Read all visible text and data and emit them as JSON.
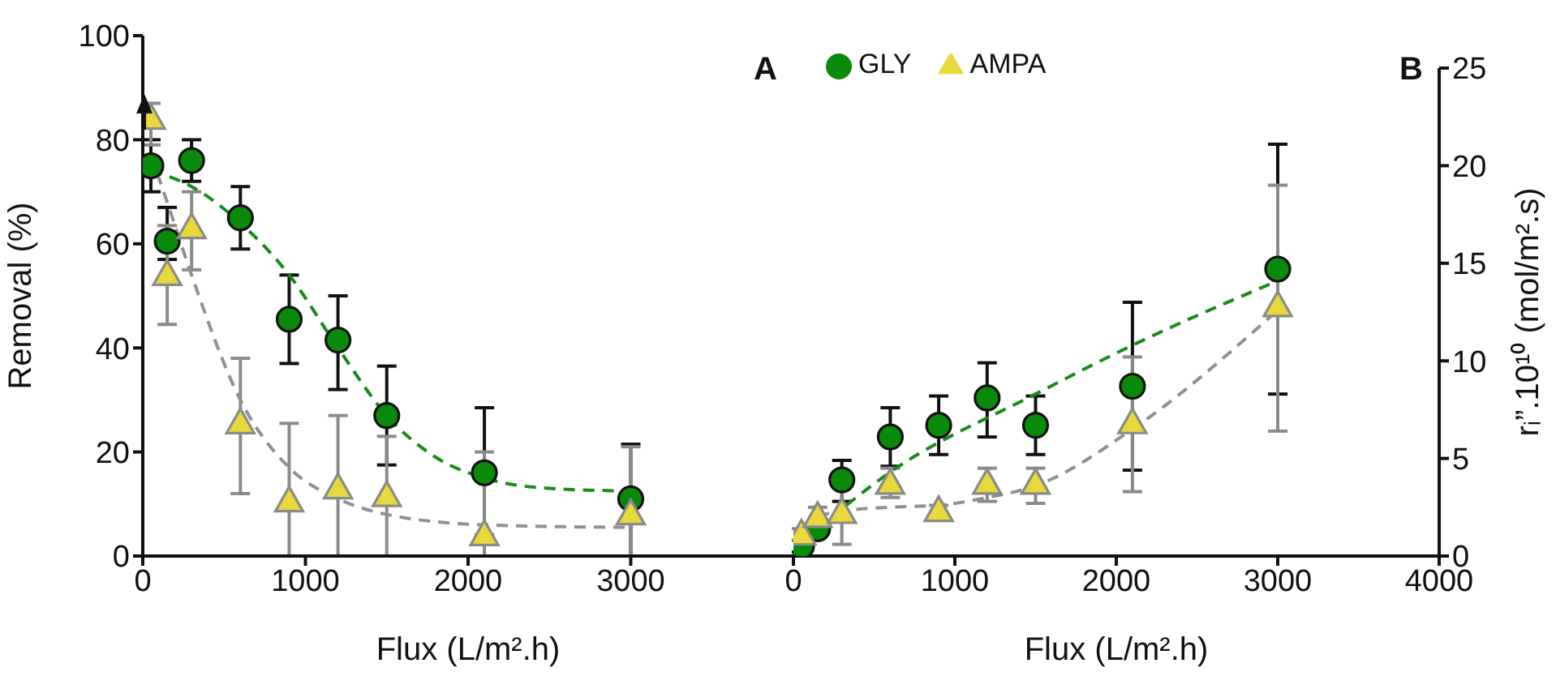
{
  "chart_data": [
    {
      "type": "scatter",
      "xlabel": "Flux (L/m².h)",
      "ylabel": "Removal (%)",
      "xlim": [
        0,
        4000
      ],
      "xticks": [
        0,
        1000,
        2000,
        3000,
        {
          "value": 4000,
          "label": null
        }
      ],
      "ylim": [
        0,
        100
      ],
      "yticks": [
        0,
        20,
        40,
        60,
        80,
        100
      ],
      "legend": false,
      "annotations": [
        "A"
      ],
      "series": [
        {
          "marker": "circle",
          "color": "#0a8a0a",
          "x": [
            50,
            150,
            300,
            600,
            900,
            1200,
            1500,
            2100,
            3000
          ],
          "values": [
            75,
            60.5,
            76,
            65,
            45.5,
            41.5,
            27,
            16,
            11
          ],
          "errors": [
            [
              70,
              80
            ],
            [
              57,
              67
            ],
            [
              72,
              80
            ],
            [
              59,
              71
            ],
            [
              37,
              54
            ],
            [
              32,
              50
            ],
            [
              17.5,
              36.5
            ],
            [
              4,
              28.5
            ],
            [
              0,
              21.5
            ]
          ]
        },
        {
          "marker": "triangle",
          "color": "#e8d83c",
          "x": [
            50,
            150,
            300,
            600,
            900,
            1200,
            1500,
            2100,
            3000
          ],
          "values": [
            84,
            54,
            63,
            25.5,
            10.5,
            13,
            11.5,
            4,
            8
          ],
          "errors": [
            [
              79,
              87
            ],
            [
              44.5,
              63.5
            ],
            [
              55,
              70
            ],
            [
              12,
              38
            ],
            [
              0,
              25.5
            ],
            [
              0,
              27
            ],
            [
              0,
              23
            ],
            [
              0,
              20
            ],
            [
              0,
              21
            ]
          ]
        },
        {
          "type": "line",
          "marker": "none",
          "line_style": "dashed",
          "color": "#1a8a1a",
          "x": [
            50,
            300,
            600,
            900,
            1200,
            1500,
            1800,
            2100,
            2500,
            3000
          ],
          "values": [
            74,
            71,
            64,
            54,
            40,
            27,
            19,
            15,
            13,
            12.5
          ]
        },
        {
          "type": "line",
          "marker": "none",
          "line_style": "dashed",
          "color": "#909090",
          "x": [
            50,
            150,
            300,
            600,
            900,
            1200,
            1500,
            2100,
            3000
          ],
          "values": [
            77,
            68,
            54,
            30,
            17,
            11,
            8,
            6,
            5.5
          ]
        }
      ]
    },
    {
      "type": "scatter",
      "xlabel": "Flux (L/m².h)",
      "ylabel": "rᵢ”.10¹⁰ (mol/m².s)",
      "xlim": [
        0,
        4000
      ],
      "xticks": [
        0,
        1000,
        2000,
        3000,
        4000
      ],
      "ylim": [
        0,
        25
      ],
      "yticks": [
        0,
        5,
        10,
        15,
        20,
        25
      ],
      "legend": "top left",
      "annotations": [
        "B"
      ],
      "series": [
        {
          "name": "GLY",
          "marker": "circle",
          "color": "#0a8a0a",
          "x": [
            50,
            150,
            300,
            600,
            900,
            1200,
            1500,
            2100,
            3000
          ],
          "values": [
            0.5,
            1.4,
            3.9,
            6.1,
            6.7,
            8.1,
            6.7,
            8.7,
            14.7
          ],
          "errors": [
            [
              0.2,
              0.8
            ],
            [
              1.1,
              1.7
            ],
            [
              2.8,
              4.9
            ],
            [
              4.6,
              7.6
            ],
            [
              5.2,
              8.2
            ],
            [
              6.1,
              9.9
            ],
            [
              5.2,
              8.2
            ],
            [
              4.4,
              13
            ],
            [
              8.3,
              21.1
            ]
          ]
        },
        {
          "name": "AMPA",
          "marker": "triangle",
          "color": "#e8d83c",
          "x": [
            50,
            150,
            300,
            600,
            900,
            1200,
            1500,
            2100,
            3000
          ],
          "values": [
            1.1,
            2,
            2.2,
            3.7,
            2.3,
            3.7,
            3.7,
            6.8,
            12.8
          ],
          "errors": [
            [
              0.8,
              1.4
            ],
            [
              1.5,
              2.5
            ],
            [
              0.6,
              3.6
            ],
            [
              3,
              4.5
            ],
            [
              2,
              2.6
            ],
            [
              2.8,
              4.5
            ],
            [
              2.7,
              4.5
            ],
            [
              3.3,
              10.2
            ],
            [
              6.4,
              19
            ]
          ]
        },
        {
          "type": "line",
          "marker": "none",
          "line_style": "dashed",
          "color": "#1a8a1a",
          "x": [
            50,
            600,
            1500,
            2100,
            3000
          ],
          "values": [
            0.7,
            4.3,
            8.3,
            10.8,
            14.1
          ]
        },
        {
          "type": "line",
          "marker": "none",
          "line_style": "dashed",
          "color": "#909090",
          "x": [
            50,
            150,
            300,
            600,
            900,
            1200,
            1500,
            2100,
            3000
          ],
          "values": [
            1.5,
            2,
            2.3,
            2.5,
            2.6,
            3,
            3.6,
            6.5,
            12.6
          ]
        }
      ]
    }
  ]
}
